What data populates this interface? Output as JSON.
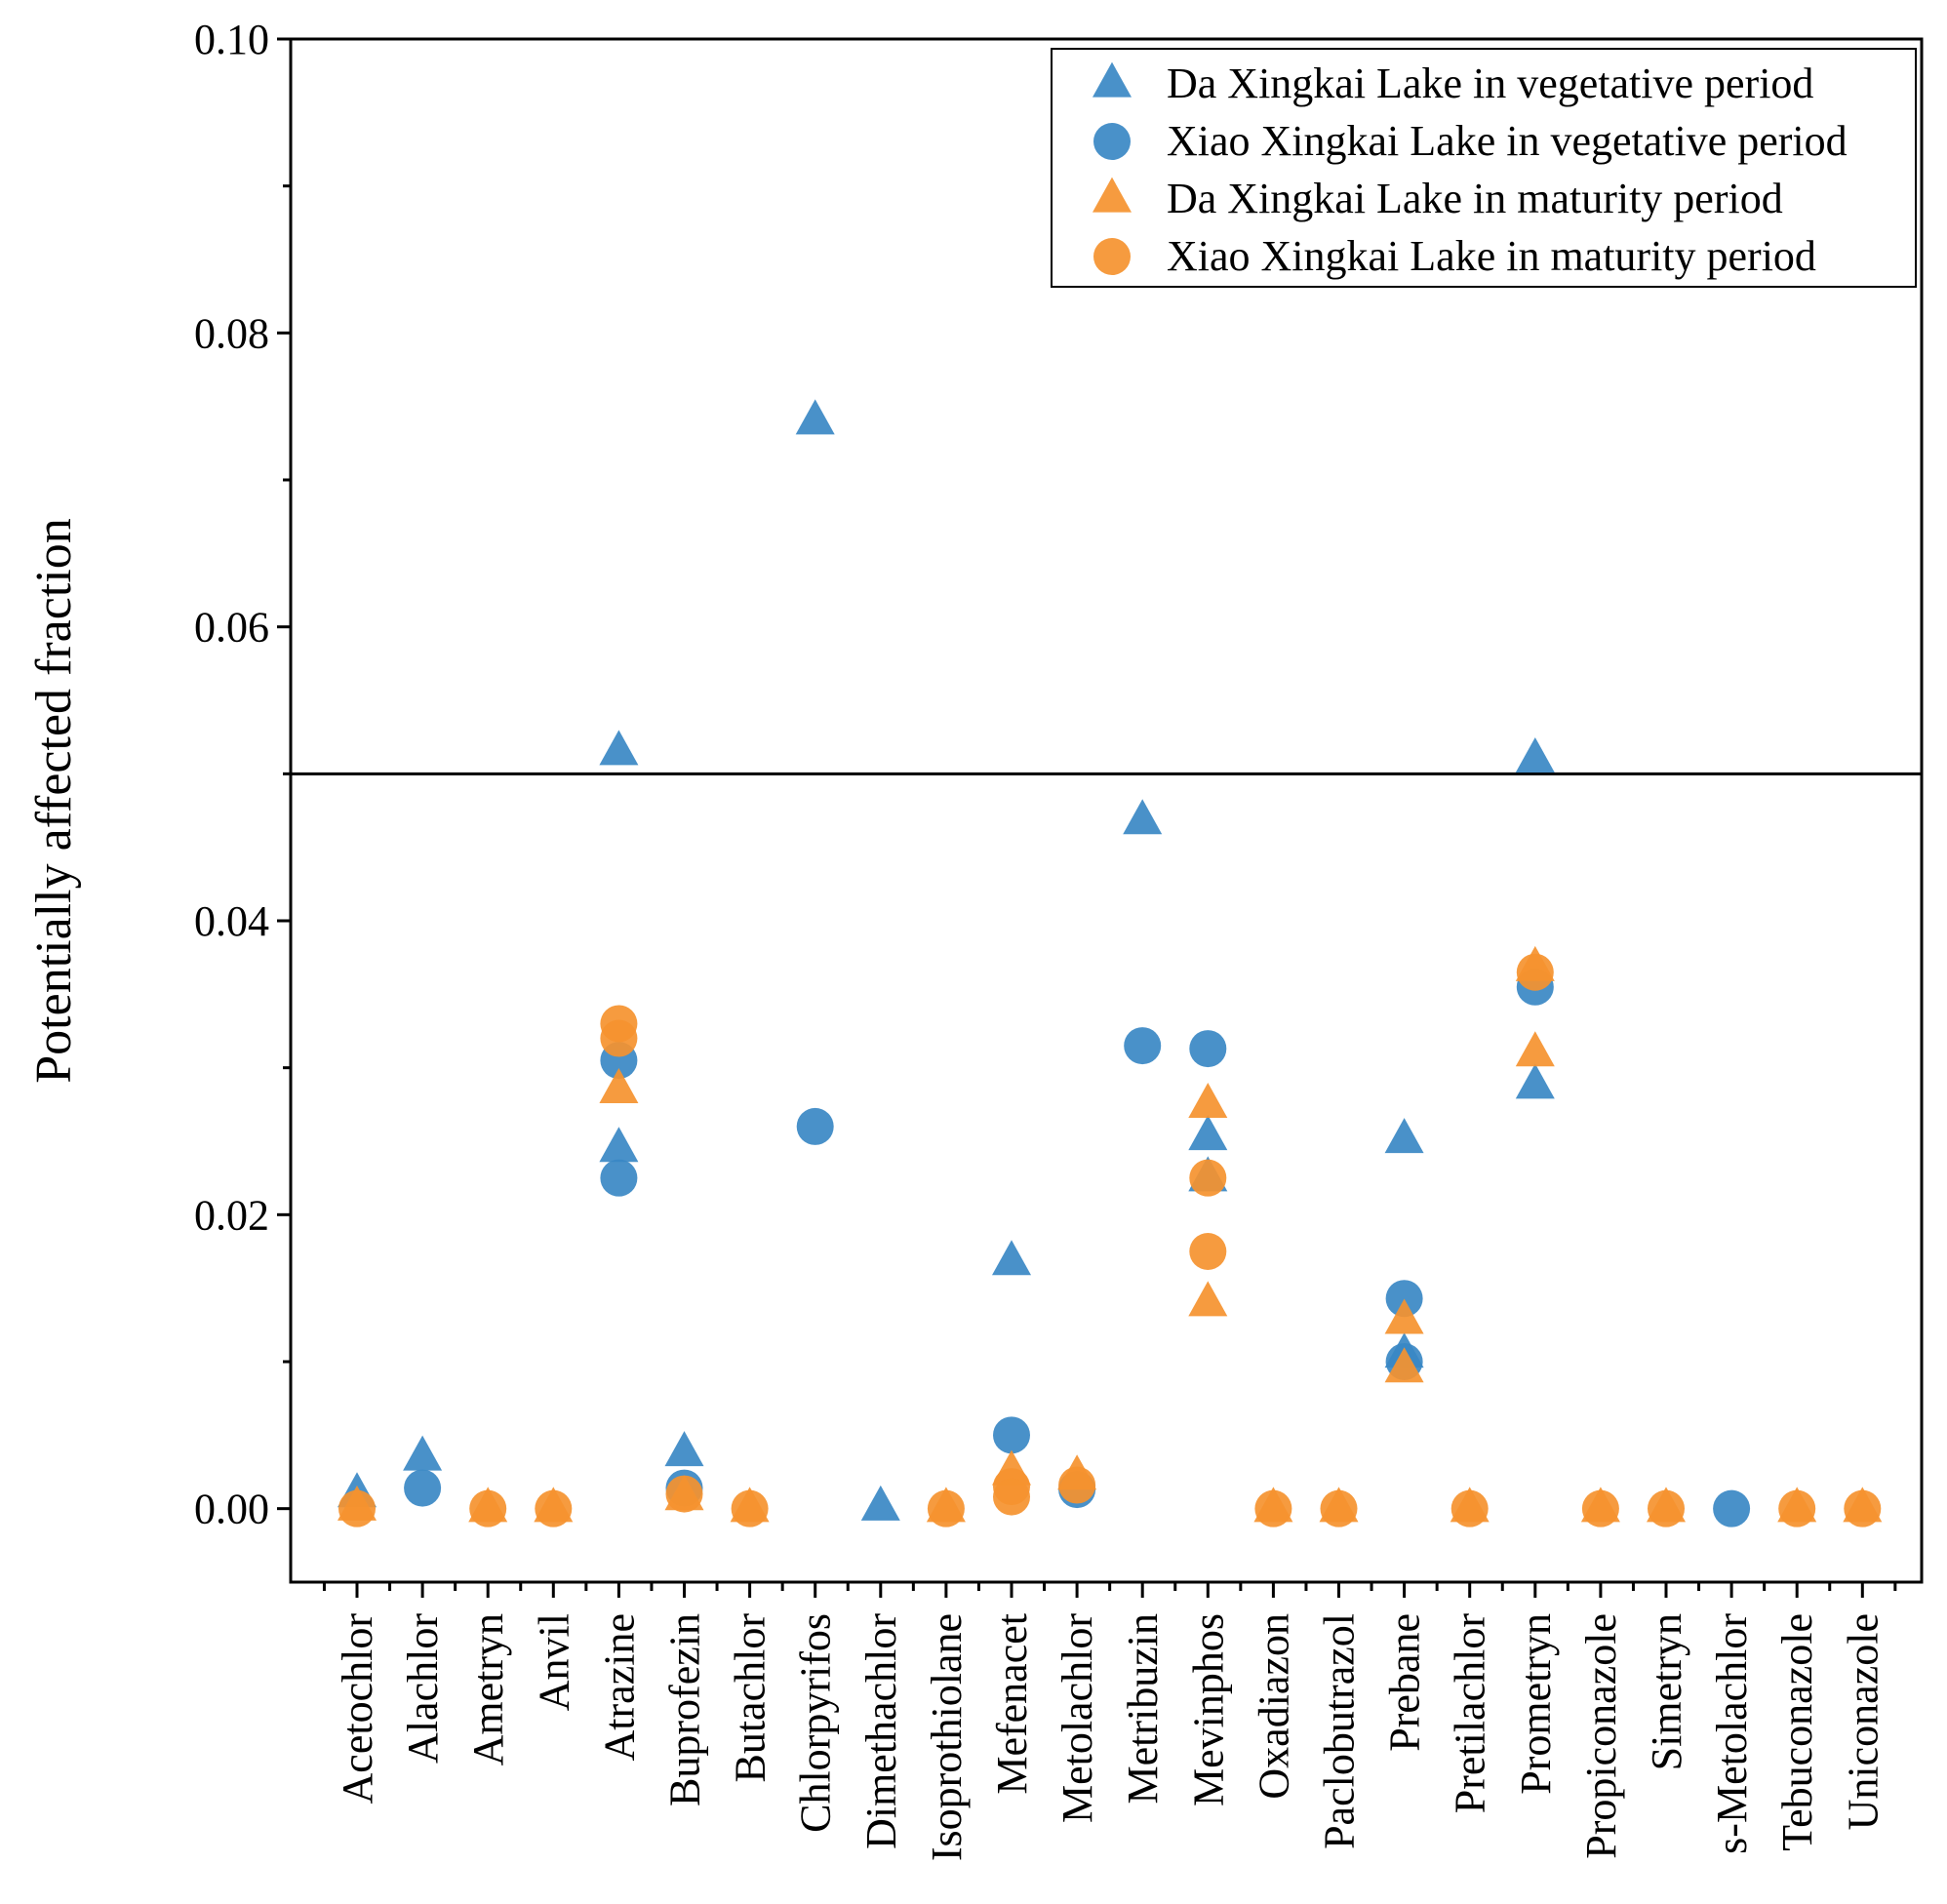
{
  "chart_data": {
    "type": "scatter",
    "title": "",
    "xlabel": "",
    "ylabel": "Potentially affected fraction",
    "ylim": [
      -0.005,
      0.1
    ],
    "yticks": [
      0.0,
      0.02,
      0.04,
      0.06,
      0.08,
      0.1
    ],
    "ytick_labels": [
      "0.00",
      "0.02",
      "0.04",
      "0.06",
      "0.08",
      "0.10"
    ],
    "reference_line_y": 0.05,
    "legend_position": "top-right",
    "categories": [
      "Acetochlor",
      "Alachlor",
      "Ametryn",
      "Anvil",
      "Atrazine",
      "Buprofezin",
      "Butachlor",
      "Chlorpyrifos",
      "Dimethachlor",
      "Isoprothiolane",
      "Mefenacet",
      "Metolachlor",
      "Metribuzin",
      "Mevinphos",
      "Oxadiazon",
      "Paclobutrazol",
      "Prebane",
      "Pretilachlor",
      "Prometryn",
      "Propiconazole",
      "Simetryn",
      "s-Metolachlor",
      "Tebuconazole",
      "Uniconazole"
    ],
    "series": [
      {
        "name": "Da Xingkai Lake in vegetative period",
        "marker": "triangle",
        "color": "#3a88c4",
        "points": [
          {
            "category": "Acetochlor",
            "y": 0.001
          },
          {
            "category": "Alachlor",
            "y": 0.0035
          },
          {
            "category": "Atrazine",
            "y": 0.0515
          },
          {
            "category": "Atrazine",
            "y": 0.0245
          },
          {
            "category": "Buprofezin",
            "y": 0.0038
          },
          {
            "category": "Chlorpyrifos",
            "y": 0.074
          },
          {
            "category": "Dimethachlor",
            "y": 0.0001
          },
          {
            "category": "Mefenacet",
            "y": 0.0168
          },
          {
            "category": "Metribuzin",
            "y": 0.0468
          },
          {
            "category": "Mevinphos",
            "y": 0.0253
          },
          {
            "category": "Mevinphos",
            "y": 0.0225
          },
          {
            "category": "Prebane",
            "y": 0.0251
          },
          {
            "category": "Prebane",
            "y": 0.0105
          },
          {
            "category": "Prometryn",
            "y": 0.051
          },
          {
            "category": "Prometryn",
            "y": 0.0288
          }
        ]
      },
      {
        "name": "Xiao Xingkai Lake in vegetative period",
        "marker": "circle",
        "color": "#3a88c4",
        "points": [
          {
            "category": "Alachlor",
            "y": 0.0014
          },
          {
            "category": "Atrazine",
            "y": 0.0305
          },
          {
            "category": "Atrazine",
            "y": 0.0225
          },
          {
            "category": "Buprofezin",
            "y": 0.0014
          },
          {
            "category": "Chlorpyrifos",
            "y": 0.026
          },
          {
            "category": "Mefenacet",
            "y": 0.005
          },
          {
            "category": "Metolachlor",
            "y": 0.0013
          },
          {
            "category": "Metribuzin",
            "y": 0.0315
          },
          {
            "category": "Mevinphos",
            "y": 0.0313
          },
          {
            "category": "Prebane",
            "y": 0.0143
          },
          {
            "category": "Prebane",
            "y": 0.01
          },
          {
            "category": "Prometryn",
            "y": 0.0355
          },
          {
            "category": "s-Metolachlor",
            "y": 0.0
          }
        ]
      },
      {
        "name": "Da Xingkai Lake in maturity period",
        "marker": "triangle",
        "color": "#f5922f",
        "points": [
          {
            "category": "Acetochlor",
            "y": 0.0001
          },
          {
            "category": "Ametryn",
            "y": 0.0
          },
          {
            "category": "Anvil",
            "y": 0.0
          },
          {
            "category": "Atrazine",
            "y": 0.0285
          },
          {
            "category": "Buprofezin",
            "y": 0.0008
          },
          {
            "category": "Butachlor",
            "y": 0.0
          },
          {
            "category": "Isoprothiolane",
            "y": 0.0
          },
          {
            "category": "Mefenacet",
            "y": 0.0025
          },
          {
            "category": "Metolachlor",
            "y": 0.0022
          },
          {
            "category": "Mevinphos",
            "y": 0.0275
          },
          {
            "category": "Mevinphos",
            "y": 0.014
          },
          {
            "category": "Oxadiazon",
            "y": 0.0
          },
          {
            "category": "Paclobutrazol",
            "y": 0.0
          },
          {
            "category": "Prebane",
            "y": 0.0128
          },
          {
            "category": "Prebane",
            "y": 0.0095
          },
          {
            "category": "Pretilachlor",
            "y": 0.0
          },
          {
            "category": "Prometryn",
            "y": 0.0368
          },
          {
            "category": "Prometryn",
            "y": 0.031
          },
          {
            "category": "Propiconazole",
            "y": 0.0
          },
          {
            "category": "Simetryn",
            "y": 0.0
          },
          {
            "category": "Tebuconazole",
            "y": 0.0
          },
          {
            "category": "Uniconazole",
            "y": 0.0
          }
        ]
      },
      {
        "name": "Xiao Xingkai Lake in maturity period",
        "marker": "circle",
        "color": "#f5922f",
        "points": [
          {
            "category": "Acetochlor",
            "y": 0.0
          },
          {
            "category": "Ametryn",
            "y": 0.0
          },
          {
            "category": "Anvil",
            "y": 0.0
          },
          {
            "category": "Atrazine",
            "y": 0.033
          },
          {
            "category": "Atrazine",
            "y": 0.032
          },
          {
            "category": "Buprofezin",
            "y": 0.001
          },
          {
            "category": "Butachlor",
            "y": 0.0
          },
          {
            "category": "Isoprothiolane",
            "y": 0.0
          },
          {
            "category": "Mefenacet",
            "y": 0.0015
          },
          {
            "category": "Mefenacet",
            "y": 0.0008
          },
          {
            "category": "Metolachlor",
            "y": 0.0016
          },
          {
            "category": "Mevinphos",
            "y": 0.0225
          },
          {
            "category": "Mevinphos",
            "y": 0.0175
          },
          {
            "category": "Oxadiazon",
            "y": 0.0
          },
          {
            "category": "Paclobutrazol",
            "y": 0.0
          },
          {
            "category": "Pretilachlor",
            "y": 0.0
          },
          {
            "category": "Prometryn",
            "y": 0.0365
          },
          {
            "category": "Propiconazole",
            "y": 0.0
          },
          {
            "category": "Simetryn",
            "y": 0.0
          },
          {
            "category": "Tebuconazole",
            "y": 0.0
          },
          {
            "category": "Uniconazole",
            "y": 0.0
          }
        ]
      }
    ]
  }
}
